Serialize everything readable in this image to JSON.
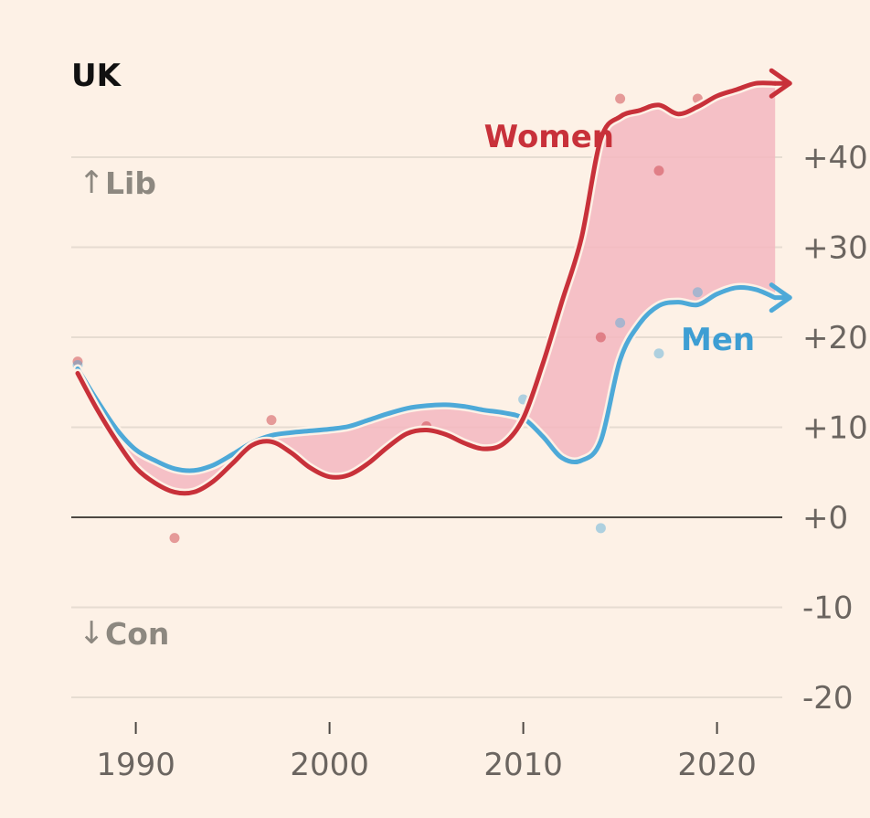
{
  "chart_data": {
    "type": "line",
    "title": "UK",
    "ylabel_top": "Lib",
    "ylabel_bottom": "Con",
    "ylim": [
      -22,
      48
    ],
    "xlim": [
      1987,
      2023
    ],
    "x_ticks": [
      1990,
      2000,
      2010,
      2020
    ],
    "x_tick_labels": [
      "1990",
      "2000",
      "2010",
      "2020"
    ],
    "y_ticks": [
      40,
      30,
      20,
      10,
      0,
      -10,
      -20
    ],
    "y_tick_labels": [
      "+40",
      "+30",
      "+20",
      "+10",
      "+0",
      "-10",
      "-20"
    ],
    "grid": true,
    "series": [
      {
        "name": "Women",
        "color": "#c8313a",
        "x": [
          1987,
          1988,
          1989,
          1990,
          1991,
          1992,
          1993,
          1994,
          1995,
          1996,
          1997,
          1998,
          1999,
          2000,
          2001,
          2002,
          2003,
          2004,
          2005,
          2006,
          2007,
          2008,
          2009,
          2010,
          2011,
          2012,
          2013,
          2014,
          2015,
          2016,
          2017,
          2018,
          2019,
          2020,
          2021,
          2022,
          2023
        ],
        "values": [
          16,
          12,
          8.5,
          5.5,
          3.8,
          2.8,
          2.8,
          4,
          6,
          8,
          8.4,
          7.2,
          5.5,
          4.5,
          4.7,
          6,
          7.8,
          9.3,
          9.7,
          9.2,
          8.2,
          7.6,
          8.2,
          11,
          17,
          24,
          31,
          42,
          44.5,
          45.2,
          45.8,
          44.8,
          45.6,
          46.8,
          47.5,
          48.2,
          48.2
        ],
        "points": [
          [
            1987,
            17.3
          ],
          [
            1992,
            -2.3
          ],
          [
            1997,
            10.8
          ],
          [
            2005,
            10.1
          ],
          [
            2014,
            20
          ],
          [
            2015,
            46.5
          ],
          [
            2017,
            38.5
          ],
          [
            2019,
            46.5
          ]
        ]
      },
      {
        "name": "Men",
        "color": "#4da9d8",
        "x": [
          1987,
          1988,
          1989,
          1990,
          1991,
          1992,
          1993,
          1994,
          1995,
          1996,
          1997,
          1998,
          1999,
          2000,
          2001,
          2002,
          2003,
          2004,
          2005,
          2006,
          2007,
          2008,
          2009,
          2010,
          2011,
          2012,
          2013,
          2014,
          2015,
          2016,
          2017,
          2018,
          2019,
          2020,
          2021,
          2022,
          2023
        ],
        "values": [
          16.5,
          13,
          9.8,
          7.5,
          6.3,
          5.4,
          5.2,
          5.8,
          7,
          8.3,
          9.1,
          9.4,
          9.6,
          9.8,
          10.1,
          10.8,
          11.5,
          12.1,
          12.4,
          12.5,
          12.3,
          11.9,
          11.6,
          11,
          9,
          6.6,
          6.3,
          8.5,
          17.5,
          21.5,
          23.5,
          23.9,
          23.6,
          24.8,
          25.5,
          25.3,
          24.4
        ],
        "points": [
          [
            1987,
            16.9
          ],
          [
            2010,
            13.1
          ],
          [
            2014,
            -1.2
          ],
          [
            2015,
            21.6
          ],
          [
            2017,
            18.2
          ],
          [
            2019,
            25
          ]
        ]
      }
    ],
    "gap_shading_color": "#f3b7c0",
    "annotations": [
      {
        "text": "Women",
        "series": "Women"
      },
      {
        "text": "Men",
        "series": "Men"
      }
    ]
  }
}
